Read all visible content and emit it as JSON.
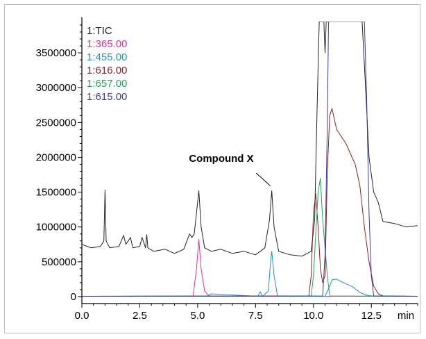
{
  "chart_data": {
    "type": "line",
    "title": "",
    "xlabel": "",
    "ylabel": "",
    "x_unit_label": "min",
    "xlim": [
      0.0,
      14.5
    ],
    "ylim": [
      -100000,
      3950000
    ],
    "grid": false,
    "legend_placement": "top-left",
    "x_ticks": [
      0.0,
      2.5,
      5.0,
      7.5,
      10.0,
      12.5
    ],
    "x_tick_labels": [
      "0.0",
      "2.5",
      "5.0",
      "7.5",
      "10.0",
      "12.5"
    ],
    "y_ticks": [
      0,
      500000,
      1000000,
      1500000,
      2000000,
      2500000,
      3000000,
      3500000
    ],
    "y_tick_labels": [
      "0",
      "500000",
      "1000000",
      "1500000",
      "2000000",
      "2500000",
      "3000000",
      "3500000"
    ],
    "annotation": {
      "text": "Compound X",
      "x": 8.2,
      "y": 1530000
    },
    "series": [
      {
        "name": "1:TIC",
        "color": "#222222",
        "x": [
          0.0,
          0.4,
          0.8,
          0.95,
          1.0,
          1.05,
          1.2,
          1.6,
          1.8,
          1.9,
          2.1,
          2.2,
          2.5,
          2.6,
          2.75,
          2.8,
          2.85,
          3.1,
          3.6,
          4.0,
          4.4,
          4.65,
          4.75,
          4.85,
          4.95,
          5.05,
          5.15,
          5.3,
          5.6,
          6.0,
          6.5,
          7.0,
          7.5,
          7.9,
          8.1,
          8.2,
          8.3,
          8.5,
          9.0,
          9.5,
          9.9,
          10.05,
          10.15,
          10.25,
          10.3,
          10.35,
          10.4,
          10.45,
          10.5,
          10.55,
          10.62,
          10.7,
          10.8,
          11.2,
          11.6,
          11.9,
          12.1,
          12.25,
          12.4,
          12.6,
          12.8,
          13.0,
          13.5,
          14.0,
          14.5
        ],
        "y": [
          750000,
          700000,
          720000,
          800000,
          1530000,
          800000,
          700000,
          720000,
          880000,
          750000,
          850000,
          700000,
          720000,
          850000,
          700000,
          890000,
          700000,
          650000,
          680000,
          620000,
          680000,
          900000,
          850000,
          900000,
          1200000,
          1520000,
          1000000,
          700000,
          650000,
          680000,
          620000,
          650000,
          600000,
          700000,
          1100000,
          1520000,
          1000000,
          650000,
          600000,
          580000,
          650000,
          1100000,
          2600000,
          3950000,
          3950000,
          3950000,
          3950000,
          3950000,
          3500000,
          3950000,
          3950000,
          3950000,
          3950000,
          3950000,
          3950000,
          3950000,
          3950000,
          3000000,
          2000000,
          1500000,
          1350000,
          1080000,
          1050000,
          1000000,
          1020000
        ]
      },
      {
        "name": "1:365.00",
        "color": "#e0309a",
        "x": [
          0.0,
          4.8,
          4.95,
          5.05,
          5.15,
          5.3,
          5.5,
          14.5
        ],
        "y": [
          5000,
          5000,
          400000,
          820000,
          400000,
          80000,
          5000,
          5000
        ]
      },
      {
        "name": "1:455.00",
        "color": "#1a8fd0",
        "x": [
          0.0,
          5.4,
          5.6,
          7.6,
          7.7,
          7.8,
          8.05,
          8.15,
          8.2,
          8.3,
          8.45,
          10.5,
          10.7,
          10.8,
          11.0,
          11.3,
          11.7,
          12.0,
          12.3,
          12.6,
          13.0,
          14.5
        ],
        "y": [
          5000,
          5000,
          40000,
          5000,
          70000,
          5000,
          80000,
          500000,
          650000,
          300000,
          5000,
          5000,
          150000,
          240000,
          250000,
          200000,
          140000,
          60000,
          20000,
          8000,
          5000,
          5000
        ]
      },
      {
        "name": "1:616.00",
        "color": "#8b2020",
        "x": [
          0.0,
          9.8,
          9.9,
          10.0,
          10.1,
          10.2,
          10.3,
          10.4,
          10.5,
          10.6,
          10.7,
          10.8,
          10.9,
          11.0,
          11.2,
          11.4,
          11.6,
          11.8,
          12.0,
          12.2,
          12.4,
          12.6,
          12.8,
          13.0,
          14.5
        ],
        "y": [
          5000,
          10000,
          300000,
          1200000,
          1480000,
          1000000,
          400000,
          200000,
          300000,
          1800000,
          2600000,
          2700000,
          2550000,
          2400000,
          2300000,
          2200000,
          2050000,
          1900000,
          1600000,
          1000000,
          500000,
          150000,
          40000,
          10000,
          5000
        ]
      },
      {
        "name": "1:657.00",
        "color": "#1fa55a",
        "x": [
          0.0,
          9.9,
          10.0,
          10.1,
          10.2,
          10.3,
          10.4,
          10.5,
          10.6,
          10.7,
          14.5
        ],
        "y": [
          5000,
          10000,
          300000,
          900000,
          1500000,
          1700000,
          1100000,
          700000,
          300000,
          10000,
          5000
        ]
      },
      {
        "name": "1:615.00",
        "color": "#3a3a9e",
        "x": [
          0.0,
          10.4,
          10.5,
          10.6,
          10.65,
          10.7,
          11.0,
          11.5,
          11.8,
          12.0,
          12.2,
          12.3,
          12.4,
          12.5,
          12.6,
          14.5
        ],
        "y": [
          5000,
          10000,
          600000,
          2500000,
          3950000,
          3950000,
          3950000,
          3950000,
          3950000,
          3950000,
          3950000,
          2800000,
          1200000,
          300000,
          10000,
          5000
        ]
      }
    ]
  }
}
